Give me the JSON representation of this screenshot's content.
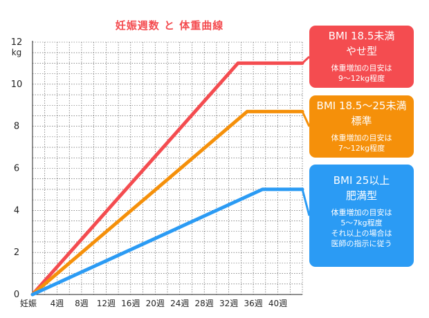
{
  "title": "妊娠週数 と 体重曲線",
  "colors": {
    "underweight": "#f44c50",
    "normal": "#f5900a",
    "overweight": "#2b9bf4",
    "title": "#f44c50",
    "grid": "#444444"
  },
  "legend_boxes": [
    {
      "series": "underweight",
      "line1": "BMI 18.5未満",
      "line2": "やせ型",
      "notes": [
        "体重増加の目安は",
        "9〜12kg程度"
      ]
    },
    {
      "series": "normal",
      "line1": "BMI 18.5〜25未満",
      "line2": "標準",
      "notes": [
        "体重増加の目安は",
        "7〜12kg程度"
      ]
    },
    {
      "series": "overweight",
      "line1": "BMI 25以上",
      "line2": "肥満型",
      "notes": [
        "体重増加の目安は",
        "5〜7kg程度",
        "それ以上の場合は",
        "医師の指示に従う"
      ]
    }
  ],
  "chart_data": {
    "type": "line",
    "title": "妊娠週数 と 体重曲線",
    "ylabel": "kg",
    "xlabel": "",
    "ylim": [
      0,
      12
    ],
    "xlim": [
      0,
      44
    ],
    "y_ticks": [
      0,
      2,
      4,
      6,
      8,
      10,
      12
    ],
    "x_ticks": [
      {
        "x": 0,
        "label": "妊娠"
      },
      {
        "x": 4,
        "label": "4週"
      },
      {
        "x": 8,
        "label": "8週"
      },
      {
        "x": 12,
        "label": "12週"
      },
      {
        "x": 16,
        "label": "16週"
      },
      {
        "x": 20,
        "label": "20週"
      },
      {
        "x": 24,
        "label": "24週"
      },
      {
        "x": 28,
        "label": "28週"
      },
      {
        "x": 32,
        "label": "32週"
      },
      {
        "x": 36,
        "label": "36週"
      },
      {
        "x": 40,
        "label": "40週"
      }
    ],
    "grid": true,
    "series": [
      {
        "key": "underweight",
        "color": "#f44c50",
        "points": [
          [
            0,
            0
          ],
          [
            33.5,
            11
          ],
          [
            44,
            11
          ]
        ]
      },
      {
        "key": "normal",
        "color": "#f5900a",
        "points": [
          [
            0,
            0
          ],
          [
            35,
            8.7
          ],
          [
            44,
            8.7
          ]
        ]
      },
      {
        "key": "overweight",
        "color": "#2b9bf4",
        "points": [
          [
            0,
            0
          ],
          [
            37.5,
            5
          ],
          [
            44,
            5
          ]
        ]
      }
    ]
  }
}
